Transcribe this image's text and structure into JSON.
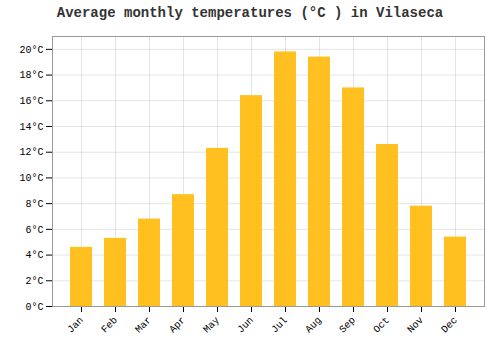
{
  "chart_data": {
    "type": "bar",
    "title": "Average monthly temperatures (°C ) in Vilaseca",
    "categories": [
      "Jan",
      "Feb",
      "Mar",
      "Apr",
      "May",
      "Jun",
      "Jul",
      "Aug",
      "Sep",
      "Oct",
      "Nov",
      "Dec"
    ],
    "values": [
      4.6,
      5.3,
      6.8,
      8.7,
      12.3,
      16.4,
      19.8,
      19.4,
      17.0,
      12.6,
      7.8,
      5.4
    ],
    "color": "#FFC020",
    "ylim": [
      0,
      21
    ],
    "yticks": [
      {
        "value": 0,
        "label": "0°C"
      },
      {
        "value": 2,
        "label": "2°C"
      },
      {
        "value": 4,
        "label": "4°C"
      },
      {
        "value": 6,
        "label": "6°C"
      },
      {
        "value": 8,
        "label": "8°C"
      },
      {
        "value": 10,
        "label": "10°C"
      },
      {
        "value": 12,
        "label": "12°C"
      },
      {
        "value": 14,
        "label": "14°C"
      },
      {
        "value": 16,
        "label": "16°C"
      },
      {
        "value": 18,
        "label": "18°C"
      },
      {
        "value": 20,
        "label": "20°C"
      }
    ],
    "grid": true
  }
}
